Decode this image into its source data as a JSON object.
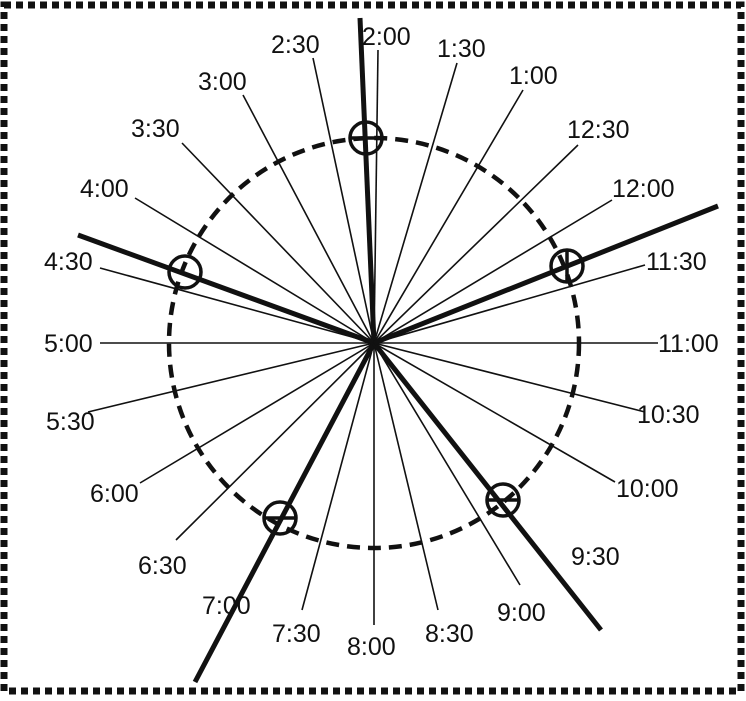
{
  "diagram": {
    "center_label": "",
    "hour_labels": [
      {
        "id": "12-00",
        "text": "12:00"
      },
      {
        "id": "12-30",
        "text": "12:30"
      },
      {
        "id": "1-00",
        "text": "1:00"
      },
      {
        "id": "1-30",
        "text": "1:30"
      },
      {
        "id": "2-00",
        "text": "2:00"
      },
      {
        "id": "2-30",
        "text": "2:30"
      },
      {
        "id": "3-00",
        "text": "3:00"
      },
      {
        "id": "3-30",
        "text": "3:30"
      },
      {
        "id": "4-00",
        "text": "4:00"
      },
      {
        "id": "4-30",
        "text": "4:30"
      },
      {
        "id": "5-00",
        "text": "5:00"
      },
      {
        "id": "5-30",
        "text": "5:30"
      },
      {
        "id": "6-00",
        "text": "6:00"
      },
      {
        "id": "6-30",
        "text": "6:30"
      },
      {
        "id": "7-00",
        "text": "7:00"
      },
      {
        "id": "7-30",
        "text": "7:30"
      },
      {
        "id": "8-00",
        "text": "8:00"
      },
      {
        "id": "8-30",
        "text": "8:30"
      },
      {
        "id": "9-00",
        "text": "9:00"
      },
      {
        "id": "9-30",
        "text": "9:30"
      },
      {
        "id": "10-00",
        "text": "10:00"
      },
      {
        "id": "10-30",
        "text": "10:30"
      },
      {
        "id": "11-00",
        "text": "11:00"
      },
      {
        "id": "11-30",
        "text": "11:30"
      }
    ],
    "highlighted_directions": [
      "2:00",
      "4:30",
      "7:00",
      "9:30",
      "11:45"
    ],
    "colors": {
      "ink": "#111111",
      "background": "#ffffff"
    }
  }
}
